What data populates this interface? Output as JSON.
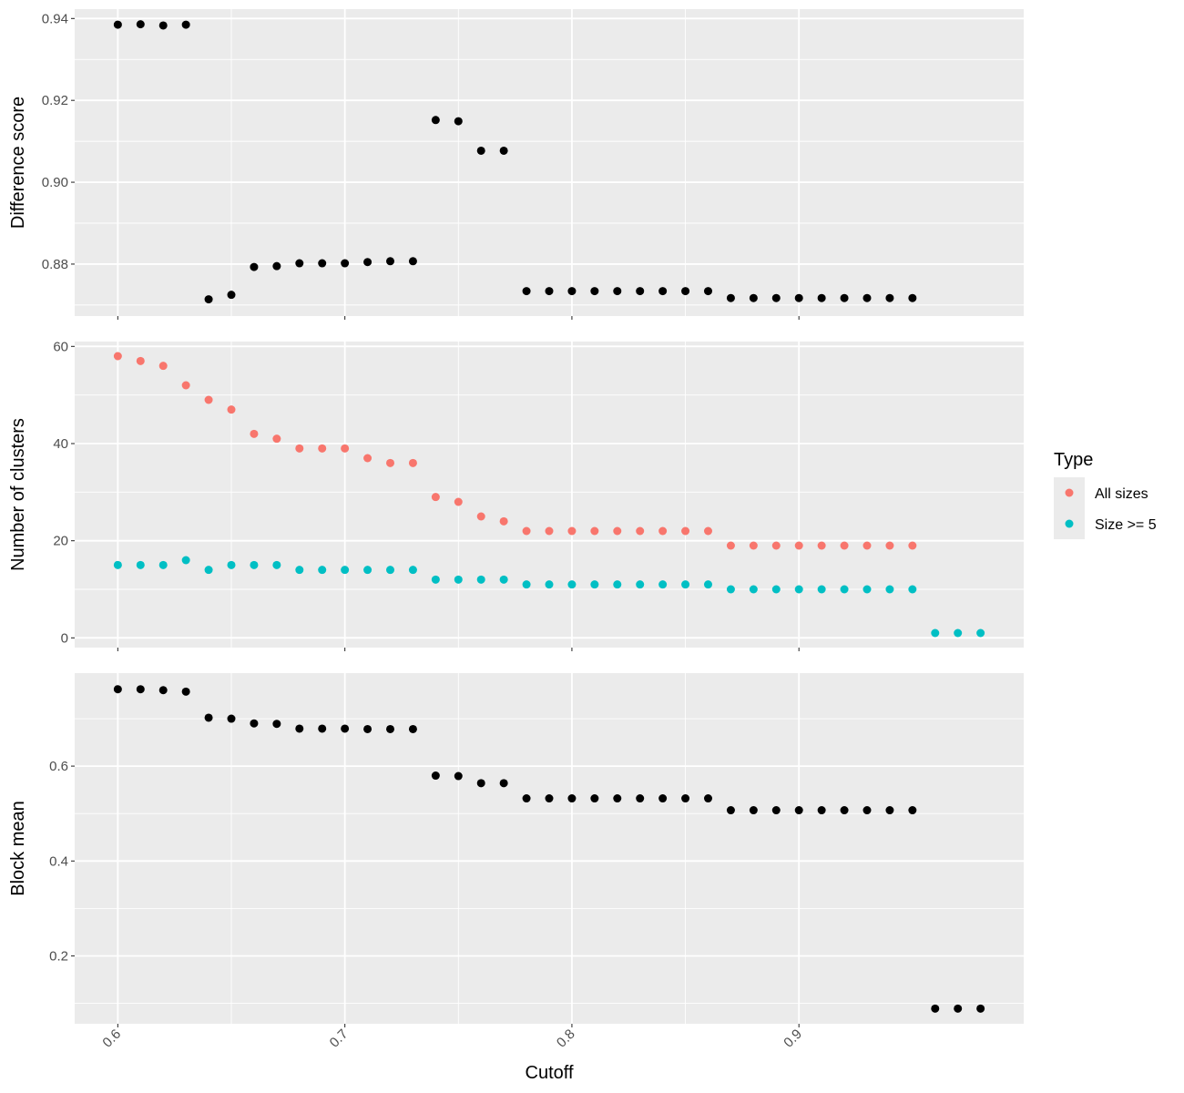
{
  "chart_data": {
    "type": "scatter",
    "xlabel": "Cutoff",
    "x_ticks": [
      0.6,
      0.7,
      0.8,
      0.9
    ],
    "x_tick_labels": [
      "0.6",
      "0.7",
      "0.8",
      "0.9"
    ],
    "xlim": [
      0.581,
      0.999
    ],
    "legend": {
      "title": "Type",
      "position": "right",
      "entries": [
        {
          "label": "All sizes",
          "color": "#F8766D"
        },
        {
          "label": "Size >= 5",
          "color": "#00BFC4"
        }
      ]
    },
    "panels": [
      {
        "ylabel": "Difference score",
        "ylim": [
          0.8673,
          0.9423
        ],
        "y_ticks": [
          0.88,
          0.9,
          0.92,
          0.94
        ],
        "y_tick_labels": [
          "0.88",
          "0.90",
          "0.92",
          "0.94"
        ],
        "series": [
          {
            "color": "#000000",
            "x": [
              0.6,
              0.61,
              0.62,
              0.63,
              0.64,
              0.65,
              0.66,
              0.67,
              0.68,
              0.69,
              0.7,
              0.71,
              0.72,
              0.73,
              0.74,
              0.75,
              0.76,
              0.77,
              0.78,
              0.79,
              0.8,
              0.81,
              0.82,
              0.83,
              0.84,
              0.85,
              0.86,
              0.87,
              0.88,
              0.89,
              0.9,
              0.91,
              0.92,
              0.93,
              0.94,
              0.95
            ],
            "y": [
              0.9385,
              0.9386,
              0.9383,
              0.9385,
              0.8714,
              0.8725,
              0.8793,
              0.8795,
              0.8802,
              0.8802,
              0.8802,
              0.8805,
              0.8807,
              0.8807,
              0.9152,
              0.9149,
              0.9077,
              0.9077,
              0.8734,
              0.8734,
              0.8734,
              0.8734,
              0.8734,
              0.8734,
              0.8734,
              0.8734,
              0.8734,
              0.8717,
              0.8717,
              0.8717,
              0.8717,
              0.8717,
              0.8717,
              0.8717,
              0.8717,
              0.8717
            ]
          }
        ]
      },
      {
        "ylabel": "Number of clusters",
        "ylim": [
          -2.0,
          61.0
        ],
        "y_ticks": [
          0,
          20,
          40,
          60
        ],
        "y_tick_labels": [
          "0",
          "20",
          "40",
          "60"
        ],
        "series": [
          {
            "name": "All sizes",
            "color": "#F8766D",
            "x": [
              0.6,
              0.61,
              0.62,
              0.63,
              0.64,
              0.65,
              0.66,
              0.67,
              0.68,
              0.69,
              0.7,
              0.71,
              0.72,
              0.73,
              0.74,
              0.75,
              0.76,
              0.77,
              0.78,
              0.79,
              0.8,
              0.81,
              0.82,
              0.83,
              0.84,
              0.85,
              0.86,
              0.87,
              0.88,
              0.89,
              0.9,
              0.91,
              0.92,
              0.93,
              0.94,
              0.95
            ],
            "y": [
              58,
              57,
              56,
              52,
              49,
              47,
              42,
              41,
              39,
              39,
              39,
              37,
              36,
              36,
              29,
              28,
              25,
              24,
              22,
              22,
              22,
              22,
              22,
              22,
              22,
              22,
              22,
              19,
              19,
              19,
              19,
              19,
              19,
              19,
              19,
              19
            ]
          },
          {
            "name": "Size >= 5",
            "color": "#00BFC4",
            "x": [
              0.6,
              0.61,
              0.62,
              0.63,
              0.64,
              0.65,
              0.66,
              0.67,
              0.68,
              0.69,
              0.7,
              0.71,
              0.72,
              0.73,
              0.74,
              0.75,
              0.76,
              0.77,
              0.78,
              0.79,
              0.8,
              0.81,
              0.82,
              0.83,
              0.84,
              0.85,
              0.86,
              0.87,
              0.88,
              0.89,
              0.9,
              0.91,
              0.92,
              0.93,
              0.94,
              0.95,
              0.96,
              0.97,
              0.98
            ],
            "y": [
              15,
              15,
              15,
              16,
              14,
              15,
              15,
              15,
              14,
              14,
              14,
              14,
              14,
              14,
              12,
              12,
              12,
              12,
              11,
              11,
              11,
              11,
              11,
              11,
              11,
              11,
              11,
              10,
              10,
              10,
              10,
              10,
              10,
              10,
              10,
              10,
              1,
              1,
              1
            ]
          }
        ]
      },
      {
        "ylabel": "Block mean",
        "ylim": [
          0.057,
          0.796
        ],
        "y_ticks": [
          0.2,
          0.4,
          0.6
        ],
        "y_tick_labels": [
          "0.2",
          "0.4",
          "0.6"
        ],
        "series": [
          {
            "color": "#000000",
            "x": [
              0.6,
              0.61,
              0.62,
              0.63,
              0.64,
              0.65,
              0.66,
              0.67,
              0.68,
              0.69,
              0.7,
              0.71,
              0.72,
              0.73,
              0.74,
              0.75,
              0.76,
              0.77,
              0.78,
              0.79,
              0.8,
              0.81,
              0.82,
              0.83,
              0.84,
              0.85,
              0.86,
              0.87,
              0.88,
              0.89,
              0.9,
              0.91,
              0.92,
              0.93,
              0.94,
              0.95,
              0.96,
              0.97,
              0.98
            ],
            "y": [
              0.762,
              0.762,
              0.76,
              0.757,
              0.702,
              0.7,
              0.69,
              0.689,
              0.679,
              0.679,
              0.679,
              0.678,
              0.678,
              0.678,
              0.58,
              0.579,
              0.564,
              0.564,
              0.532,
              0.532,
              0.532,
              0.532,
              0.532,
              0.532,
              0.532,
              0.532,
              0.532,
              0.507,
              0.507,
              0.507,
              0.507,
              0.507,
              0.507,
              0.507,
              0.507,
              0.507,
              0.089,
              0.089,
              0.089
            ]
          }
        ]
      }
    ]
  }
}
